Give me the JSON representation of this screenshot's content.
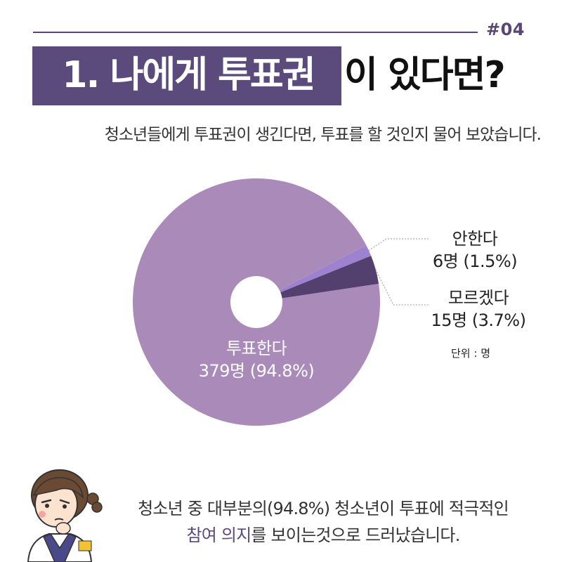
{
  "header": {
    "tag": "#04",
    "title_highlight": "1. 나에게 투표권",
    "title_rest": "이 있다면?",
    "subtitle": "청소년들에게 투표권이 생긴다면, 투표를 할 것인지 물어 보았습니다."
  },
  "chart_data": {
    "type": "pie",
    "unit_label": "단위 : 명",
    "categories": [
      "투표한다",
      "안한다",
      "모르겠다"
    ],
    "values": [
      379,
      6,
      15
    ],
    "percents": [
      "94.8%",
      "1.5%",
      "3.7%"
    ],
    "labels": [
      {
        "name": "투표한다",
        "detail": "379명 (94.8%)"
      },
      {
        "name": "안한다",
        "detail": "6명 (1.5%)"
      },
      {
        "name": "모르겠다",
        "detail": "15명 (3.7%)"
      }
    ],
    "colors": [
      "#aa8ab8",
      "#9d83cf",
      "#54406f"
    ],
    "legend": "none"
  },
  "footer": {
    "line1": "청소년 중 대부분의(94.8%) 청소년이 투표에 적극적인",
    "line2_accent": "참여 의지",
    "line2_rest": "를 보이는것으로 드러났습니다."
  }
}
